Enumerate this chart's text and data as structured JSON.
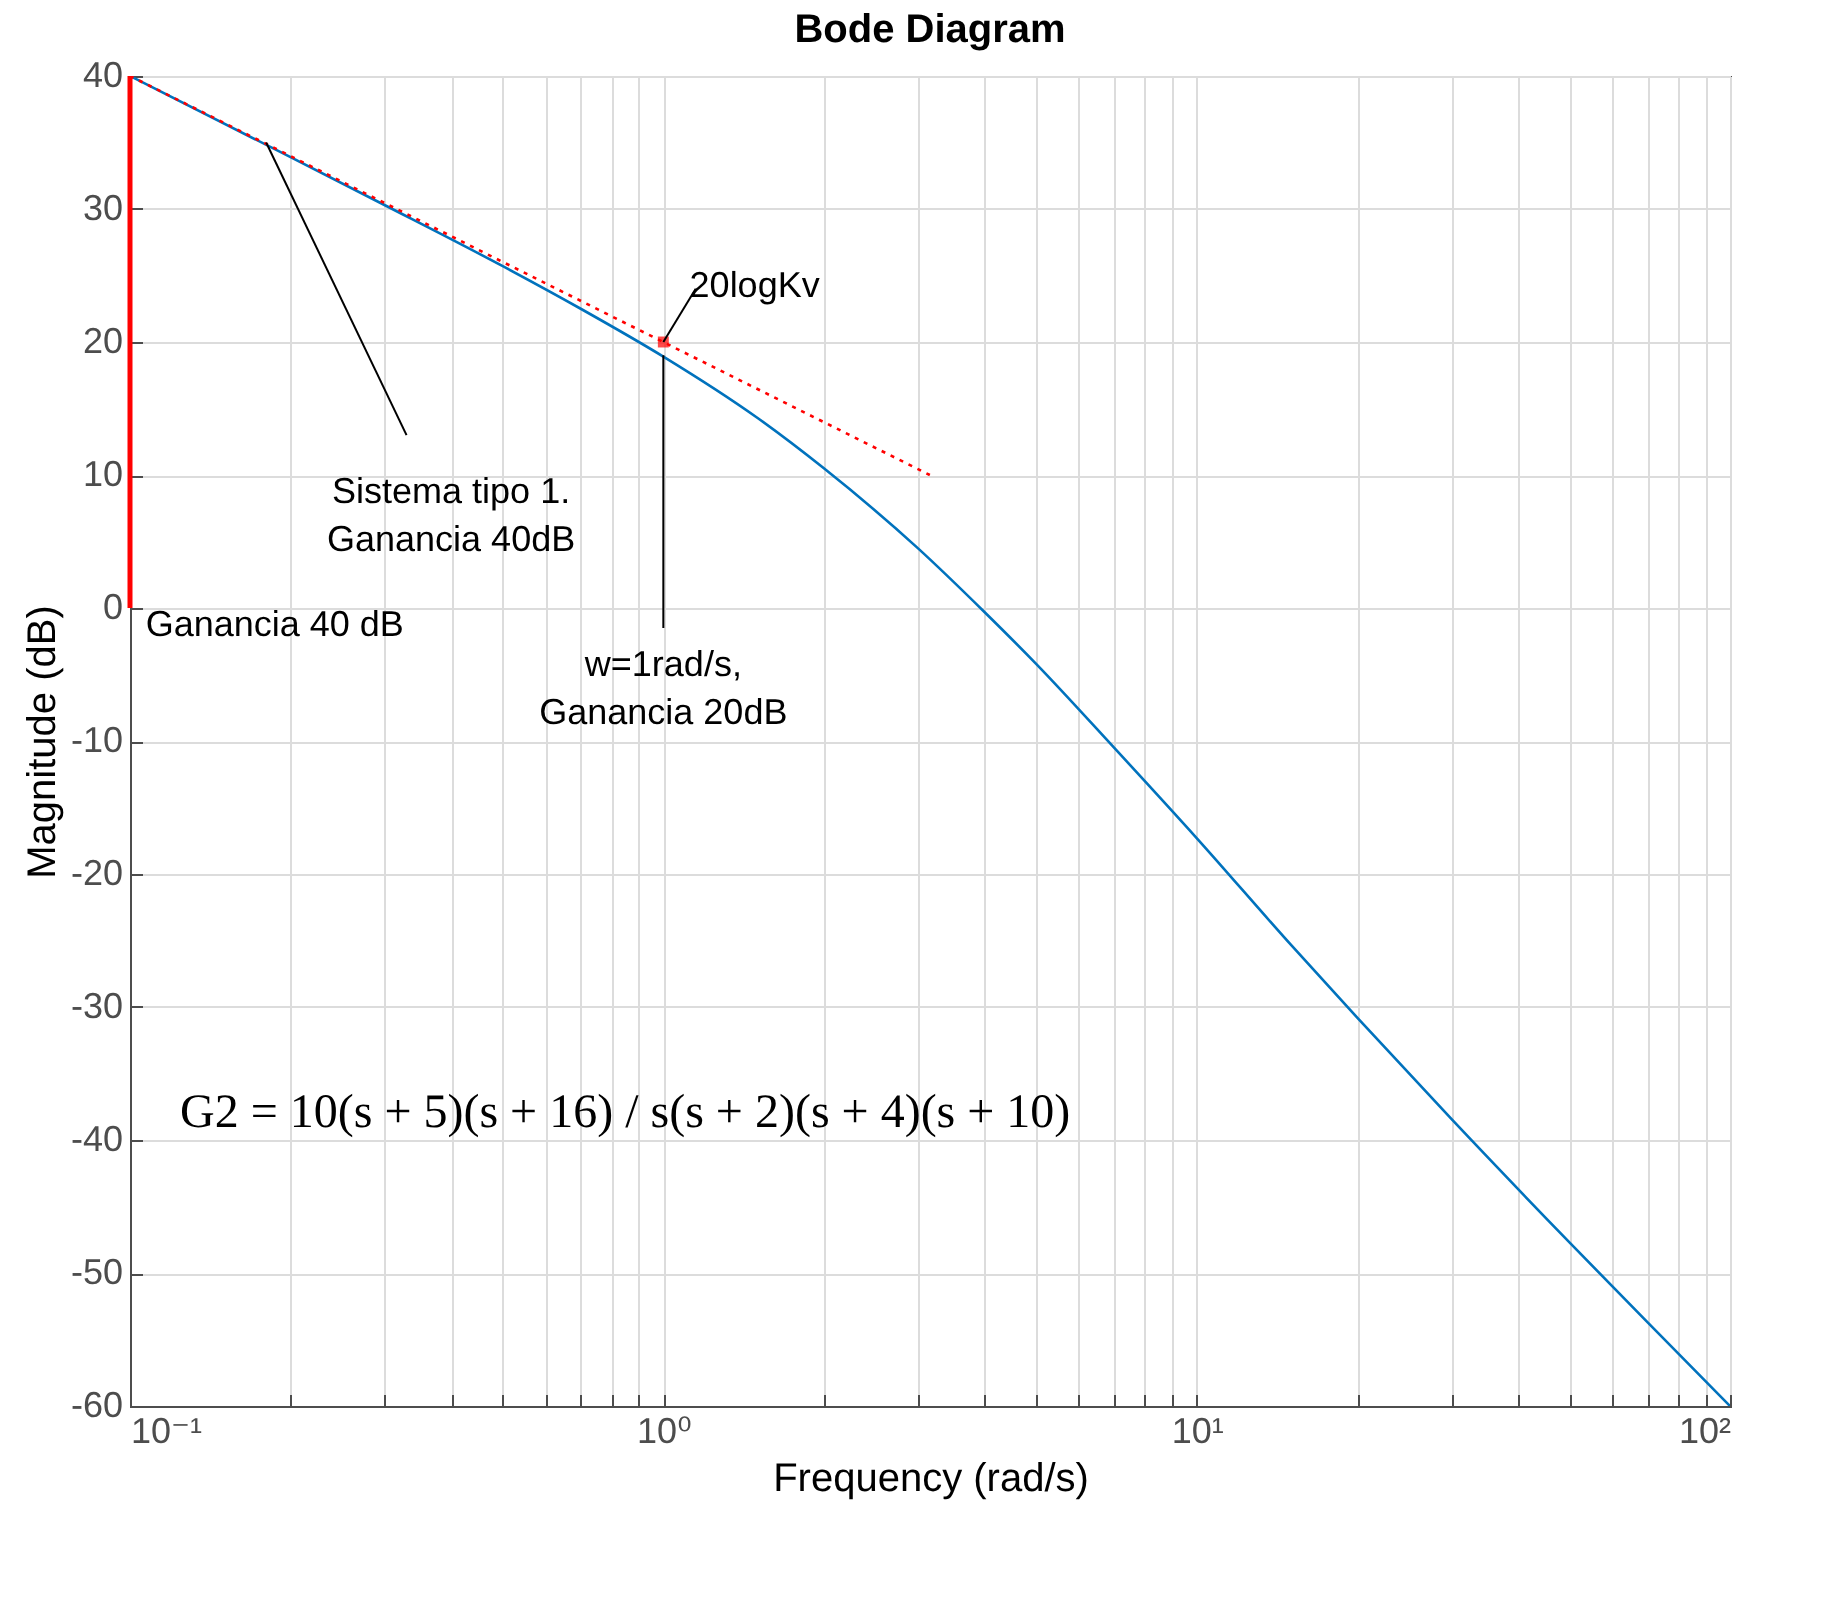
{
  "chart_data": {
    "type": "line",
    "title": "Bode Diagram",
    "xlabel": "Frequency  (rad/s)",
    "ylabel": "Magnitude (dB)",
    "series": [
      {
        "color": "#0072bd",
        "line_style": "solid",
        "x": [
          0.1,
          0.2,
          0.3,
          0.5,
          0.7,
          1,
          1.5,
          2,
          3,
          4,
          5,
          7,
          10,
          15,
          20,
          30,
          50,
          70,
          100
        ],
        "values": [
          40,
          33.9,
          30.3,
          25.7,
          22.5,
          18.9,
          14.3,
          10.5,
          4.5,
          -0.3,
          -4.2,
          -10.5,
          -17.3,
          -25.3,
          -30.8,
          -38.4,
          -47.7,
          -53.7,
          -60
        ]
      },
      {
        "color": "#ff0000",
        "line_style": "dotted",
        "x": [
          0.1,
          3.16
        ],
        "values": [
          40,
          10
        ]
      },
      {
        "type": "scatter",
        "color": "#ff0000",
        "marker": "square",
        "x": [
          1
        ],
        "values": [
          20
        ]
      }
    ],
    "log": "x",
    "grid": true,
    "xlim": [
      0.1,
      100
    ],
    "ylim": [
      -60,
      40
    ],
    "xticks": [
      {
        "value": 0.1,
        "label": "10⁻¹"
      },
      {
        "value": 0.2,
        "label": null
      },
      {
        "value": 0.3,
        "label": null
      },
      {
        "value": 0.4,
        "label": null
      },
      {
        "value": 0.5,
        "label": null
      },
      {
        "value": 0.6,
        "label": null
      },
      {
        "value": 0.7,
        "label": null
      },
      {
        "value": 0.8,
        "label": null
      },
      {
        "value": 0.9,
        "label": null
      },
      {
        "value": 1,
        "label": "10⁰"
      },
      {
        "value": 2,
        "label": null
      },
      {
        "value": 3,
        "label": null
      },
      {
        "value": 4,
        "label": null
      },
      {
        "value": 5,
        "label": null
      },
      {
        "value": 6,
        "label": null
      },
      {
        "value": 7,
        "label": null
      },
      {
        "value": 8,
        "label": null
      },
      {
        "value": 9,
        "label": null
      },
      {
        "value": 10,
        "label": "10¹"
      },
      {
        "value": 20,
        "label": null
      },
      {
        "value": 30,
        "label": null
      },
      {
        "value": 40,
        "label": null
      },
      {
        "value": 50,
        "label": null
      },
      {
        "value": 60,
        "label": null
      },
      {
        "value": 70,
        "label": null
      },
      {
        "value": 80,
        "label": null
      },
      {
        "value": 90,
        "label": null
      },
      {
        "value": 100,
        "label": "10²"
      }
    ],
    "yticks": [
      -60,
      -50,
      -40,
      -30,
      -20,
      -10,
      0,
      10,
      20,
      30,
      40
    ],
    "annotations": [
      {
        "text": "20logKv",
        "x": 1,
        "y": 20
      },
      {
        "text": "Sistema tipo 1.\nGanancia 40dB",
        "x": 0.18,
        "y": 35
      },
      {
        "text": "w=1rad/s,\nGanancia 20dB",
        "x": 1,
        "y": 19
      },
      {
        "text": "Ganancia 40 dB",
        "x": 0.1,
        "y": 40
      },
      "G2 = 10(s + 5)(s + 16) / s(s + 2)(s + 4)(s + 10)"
    ]
  }
}
